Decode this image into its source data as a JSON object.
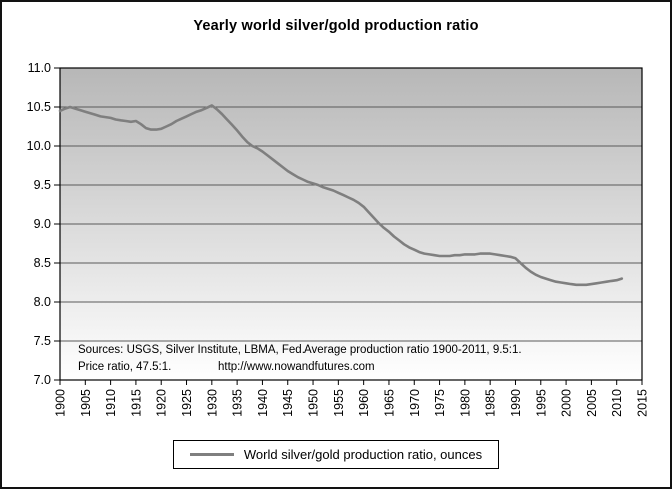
{
  "chart_data": {
    "type": "line",
    "title": "Yearly world silver/gold production ratio",
    "legend": "World silver/gold production ratio, ounces",
    "xlabel": "",
    "ylabel": "",
    "xlim": [
      1900,
      2015
    ],
    "ylim": [
      7.0,
      11.0
    ],
    "grid": "horizontal",
    "legend_position": "bottom-center",
    "x_ticks": [
      1900,
      1905,
      1910,
      1915,
      1920,
      1925,
      1930,
      1935,
      1940,
      1945,
      1950,
      1955,
      1960,
      1965,
      1970,
      1975,
      1980,
      1985,
      1990,
      1995,
      2000,
      2005,
      2010,
      2015
    ],
    "y_ticks": [
      "11.0",
      "10.5",
      "10.0",
      "9.5",
      "9.0",
      "8.5",
      "8.0",
      "7.5",
      "7.0"
    ],
    "annotations": {
      "line1_left": "Sources: USGS, Silver Institute, LBMA, Fed.",
      "line1_right": "Average production ratio 1900-2011, 9.5:1.",
      "line2_left": "Price ratio, 47.5:1.",
      "line2_right": "http://www.nowandfutures.com"
    },
    "colors": {
      "series": "#7f7f7f",
      "grid": "#5a5a5a",
      "plot_gradient_top": "#b7b7b7",
      "plot_gradient_bottom": "#ffffff",
      "axis": "#000000"
    },
    "series": [
      {
        "name": "World silver/gold production ratio, ounces",
        "color": "#7f7f7f",
        "x": [
          1900,
          1901,
          1902,
          1903,
          1904,
          1905,
          1906,
          1907,
          1908,
          1909,
          1910,
          1911,
          1912,
          1913,
          1914,
          1915,
          1916,
          1917,
          1918,
          1919,
          1920,
          1921,
          1922,
          1923,
          1924,
          1925,
          1926,
          1927,
          1928,
          1929,
          1930,
          1931,
          1932,
          1933,
          1934,
          1935,
          1936,
          1937,
          1938,
          1939,
          1940,
          1941,
          1942,
          1943,
          1944,
          1945,
          1946,
          1947,
          1948,
          1949,
          1950,
          1951,
          1952,
          1953,
          1954,
          1955,
          1956,
          1957,
          1958,
          1959,
          1960,
          1961,
          1962,
          1963,
          1964,
          1965,
          1966,
          1967,
          1968,
          1969,
          1970,
          1971,
          1972,
          1973,
          1974,
          1975,
          1976,
          1977,
          1978,
          1979,
          1980,
          1981,
          1982,
          1983,
          1984,
          1985,
          1986,
          1987,
          1988,
          1989,
          1990,
          1991,
          1992,
          1993,
          1994,
          1995,
          1996,
          1997,
          1998,
          1999,
          2000,
          2001,
          2002,
          2003,
          2004,
          2005,
          2006,
          2007,
          2008,
          2009,
          2010,
          2011
        ],
        "values": [
          10.45,
          10.48,
          10.5,
          10.48,
          10.46,
          10.44,
          10.42,
          10.4,
          10.38,
          10.37,
          10.36,
          10.34,
          10.33,
          10.32,
          10.31,
          10.32,
          10.28,
          10.23,
          10.21,
          10.21,
          10.22,
          10.25,
          10.28,
          10.32,
          10.35,
          10.38,
          10.41,
          10.44,
          10.46,
          10.49,
          10.52,
          10.47,
          10.41,
          10.34,
          10.27,
          10.2,
          10.12,
          10.05,
          10.0,
          9.97,
          9.93,
          9.88,
          9.83,
          9.78,
          9.73,
          9.68,
          9.64,
          9.6,
          9.57,
          9.54,
          9.52,
          9.5,
          9.47,
          9.45,
          9.43,
          9.4,
          9.37,
          9.34,
          9.31,
          9.27,
          9.22,
          9.15,
          9.08,
          9.01,
          8.95,
          8.9,
          8.84,
          8.79,
          8.74,
          8.7,
          8.67,
          8.64,
          8.62,
          8.61,
          8.6,
          8.59,
          8.59,
          8.59,
          8.6,
          8.6,
          8.61,
          8.61,
          8.61,
          8.62,
          8.62,
          8.62,
          8.61,
          8.6,
          8.59,
          8.58,
          8.56,
          8.5,
          8.44,
          8.39,
          8.35,
          8.32,
          8.3,
          8.28,
          8.26,
          8.25,
          8.24,
          8.23,
          8.22,
          8.22,
          8.22,
          8.23,
          8.24,
          8.25,
          8.26,
          8.27,
          8.28,
          8.3
        ]
      }
    ]
  }
}
